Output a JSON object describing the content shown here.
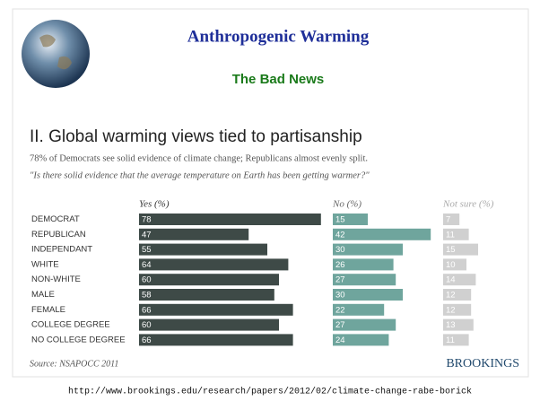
{
  "slide": {
    "title": "Anthropogenic Warming",
    "subtitle": "The Bad News",
    "url": "http://www.brookings.edu/research/papers/2012/02/climate-change-rabe-borick"
  },
  "chart_data": {
    "type": "bar",
    "orientation": "horizontal",
    "title": "II. Global warming views tied to partisanship",
    "subtitle": "78% of Democrats see solid evidence of climate change; Republicans almost evenly split.",
    "question": "\"Is there solid evidence that the average temperature on Earth has been getting warmer?\"",
    "categories": [
      "DEMOCRAT",
      "REPUBLICAN",
      "INDEPENDANT",
      "WHITE",
      "NON-WHITE",
      "MALE",
      "FEMALE",
      "COLLEGE DEGREE",
      "NO COLLEGE DEGREE"
    ],
    "series": [
      {
        "name": "Yes (%)",
        "color": "#3e4a47",
        "values": [
          78,
          47,
          55,
          64,
          60,
          58,
          66,
          60,
          66
        ]
      },
      {
        "name": "No (%)",
        "color": "#6fa59d",
        "values": [
          15,
          42,
          30,
          26,
          27,
          30,
          22,
          27,
          24
        ]
      },
      {
        "name": "Not sure (%)",
        "color": "#d0d0d0",
        "values": [
          7,
          11,
          15,
          10,
          14,
          12,
          12,
          13,
          11
        ]
      }
    ],
    "source": "Source: NSAPOCC 2011",
    "brand": "BROOKINGS"
  }
}
